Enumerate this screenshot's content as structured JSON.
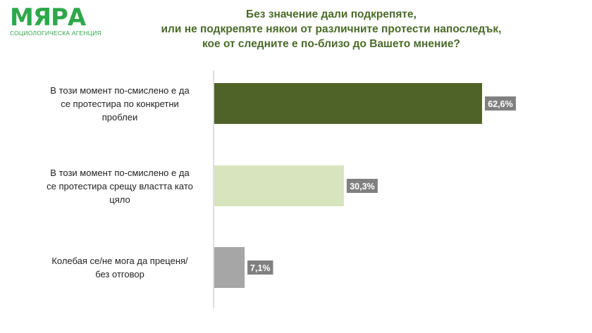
{
  "logo": {
    "name": "МЯРА",
    "subtitle": "СОЦИОЛОГИЧЕСКА АГЕНЦИЯ"
  },
  "colors": {
    "logo": "#2ea84a",
    "title": "#4a6b2a",
    "label_bg": "#808080"
  },
  "chart_data": {
    "type": "bar",
    "orientation": "horizontal",
    "title": [
      "Без значение дали подкрепяте,",
      "или не подкрепяте някои от различните протести напоследък,",
      "кое от следните е по-близо до Вашето мнение?"
    ],
    "categories": [
      "В този момент по-смислено е да се протестира по конкретни проблеи",
      "В този момент по-смислено е да се протестира срещу властта като цяло",
      "Колебая се/не мога да преценя/ без отговор"
    ],
    "category_lines": [
      [
        "В този момент по-смислено е да",
        "се протестира по конкретни",
        "проблеи"
      ],
      [
        "В този момент по-смислено е да",
        "се протестира срещу властта като",
        "цяло"
      ],
      [
        "Колебая се/не мога да преценя/",
        "без отговор"
      ]
    ],
    "values": [
      62.6,
      30.3,
      7.1
    ],
    "value_labels": [
      "62,6%",
      "30,3%",
      "7,1%"
    ],
    "bar_colors": [
      "#4f6228",
      "#d7e4bd",
      "#a6a6a6"
    ],
    "xlim": [
      0,
      70
    ],
    "grid": false,
    "legend": "none"
  }
}
